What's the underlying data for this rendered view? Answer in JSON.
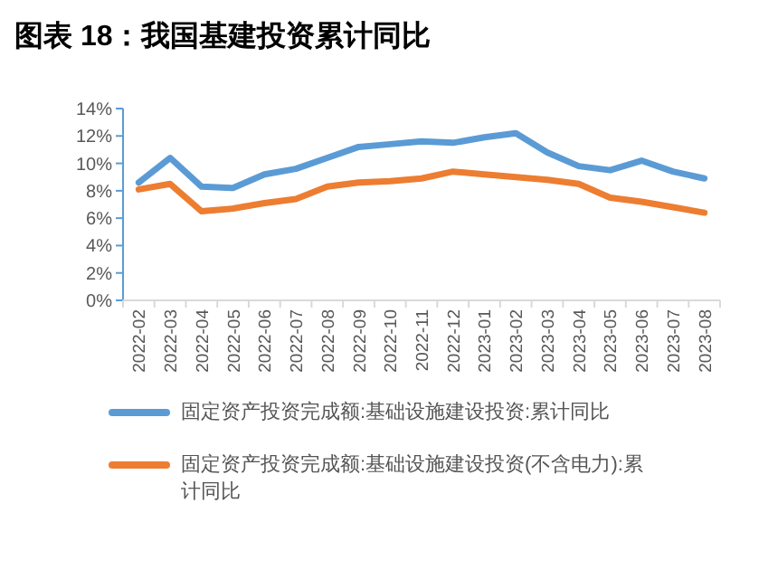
{
  "chart_data": {
    "type": "line",
    "title": "图表 18：我国基建投资累计同比",
    "categories": [
      "2022-02",
      "2022-03",
      "2022-04",
      "2022-05",
      "2022-06",
      "2022-07",
      "2022-08",
      "2022-09",
      "2022-10",
      "2022-11",
      "2022-12",
      "2023-01",
      "2023-02",
      "2023-03",
      "2023-04",
      "2023-05",
      "2023-06",
      "2023-07",
      "2023-08"
    ],
    "series": [
      {
        "name": "固定资产投资完成额:基础设施建设投资:累计同比",
        "color": "#5b9bd5",
        "values": [
          8.6,
          10.4,
          8.3,
          8.2,
          9.2,
          9.6,
          10.4,
          11.2,
          11.4,
          11.6,
          11.5,
          11.9,
          12.2,
          10.8,
          9.8,
          9.5,
          10.2,
          9.4,
          8.9
        ]
      },
      {
        "name": "固定资产投资完成额:基础设施建设投资(不含电力):累计同比",
        "color": "#ed7d31",
        "values": [
          8.1,
          8.5,
          6.5,
          6.7,
          7.1,
          7.4,
          8.3,
          8.6,
          8.7,
          8.9,
          9.4,
          9.2,
          9.0,
          8.8,
          8.5,
          7.5,
          7.2,
          6.8,
          6.4
        ]
      }
    ],
    "ylim": [
      0,
      14
    ],
    "yticks": [
      {
        "value": 0,
        "label": "0%"
      },
      {
        "value": 2,
        "label": "2%"
      },
      {
        "value": 4,
        "label": "4%"
      },
      {
        "value": 6,
        "label": "6%"
      },
      {
        "value": 8,
        "label": "8%"
      },
      {
        "value": 10,
        "label": "10%"
      },
      {
        "value": 12,
        "label": "12%"
      },
      {
        "value": 14,
        "label": "14%"
      }
    ],
    "legend": "bottom",
    "grid": false
  }
}
